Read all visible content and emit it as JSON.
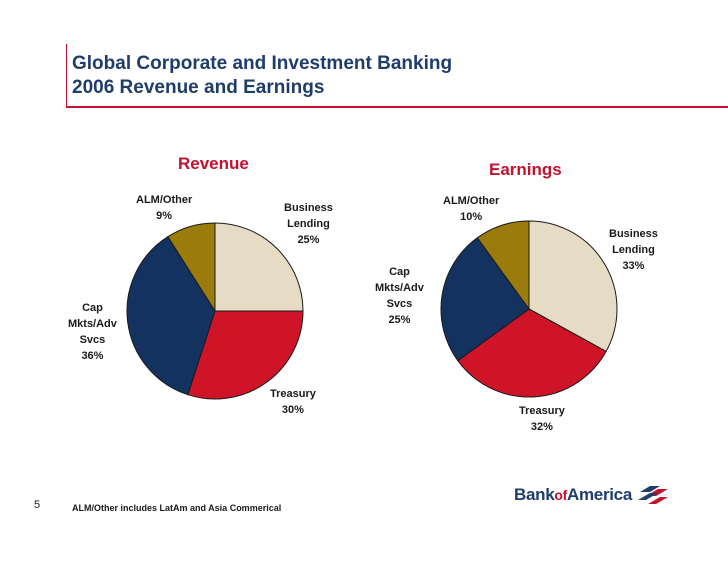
{
  "header": {
    "title_line1": "Global Corporate and Investment Banking",
    "title_line2": "2006 Revenue and Earnings"
  },
  "colors": {
    "business_lending": "#e6dbc4",
    "treasury": "#cf1428",
    "cap_mkts": "#13325f",
    "alm_other": "#9a7b0b",
    "accent": "#c4112f",
    "title": "#1f3d6b"
  },
  "chart_data": [
    {
      "type": "pie",
      "title": "Revenue",
      "slices": [
        {
          "key": "business_lending",
          "lines": [
            "Business",
            "Lending",
            "25%"
          ],
          "value": 25
        },
        {
          "key": "treasury",
          "lines": [
            "Treasury",
            "30%"
          ],
          "value": 30
        },
        {
          "key": "cap_mkts",
          "lines": [
            "Cap",
            "Mkts/Adv",
            "Svcs",
            "36%"
          ],
          "value": 36
        },
        {
          "key": "alm_other",
          "lines": [
            "ALM/Other",
            "9%"
          ],
          "value": 9
        }
      ]
    },
    {
      "type": "pie",
      "title": "Earnings",
      "slices": [
        {
          "key": "business_lending",
          "lines": [
            "Business",
            "Lending",
            "33%"
          ],
          "value": 33
        },
        {
          "key": "treasury",
          "lines": [
            "Treasury",
            "32%"
          ],
          "value": 32
        },
        {
          "key": "cap_mkts",
          "lines": [
            "Cap",
            "Mkts/Adv",
            "Svcs",
            "25%"
          ],
          "value": 25
        },
        {
          "key": "alm_other",
          "lines": [
            "ALM/Other",
            "10%"
          ],
          "value": 10
        }
      ]
    }
  ],
  "footer": {
    "page_number": "5",
    "footnote": "ALM/Other includes LatAm and Asia Commerical",
    "logo_bank": "Bank",
    "logo_of": "of",
    "logo_america": "America"
  }
}
